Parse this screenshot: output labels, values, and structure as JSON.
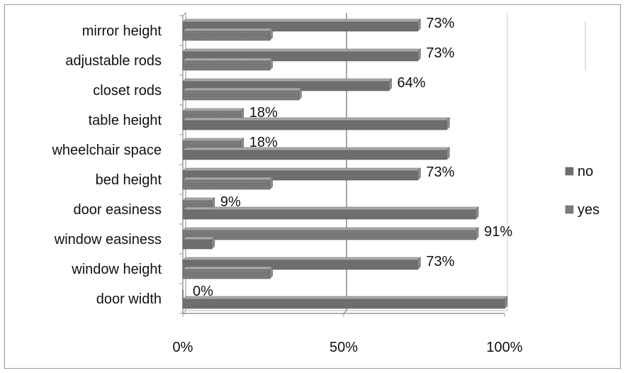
{
  "chart_data": {
    "type": "bar",
    "orientation": "horizontal",
    "title": "",
    "xlabel": "",
    "ylabel": "",
    "categories": [
      "mirror height",
      "adjustable rods",
      "closet rods",
      "table height",
      "wheelchair space",
      "bed height",
      "door easiness",
      "window easiness",
      "window height",
      "door width"
    ],
    "series": [
      {
        "name": "no",
        "values": [
          73,
          73,
          64,
          82,
          82,
          73,
          91,
          9,
          73,
          100
        ],
        "color": "#6e6e6e"
      },
      {
        "name": "yes",
        "values": [
          27,
          27,
          36,
          18,
          18,
          27,
          9,
          91,
          27,
          0
        ],
        "color": "#7c7c7c"
      }
    ],
    "data_labels": [
      "73%",
      "73%",
      "64%",
      "18%",
      "18%",
      "73%",
      "9%",
      "91%",
      "73%",
      "0%"
    ],
    "x_ticks": [
      "0%",
      "50%",
      "100%"
    ],
    "xlim": [
      0,
      100
    ],
    "grid": "vertical at 50%",
    "legend": "right"
  }
}
